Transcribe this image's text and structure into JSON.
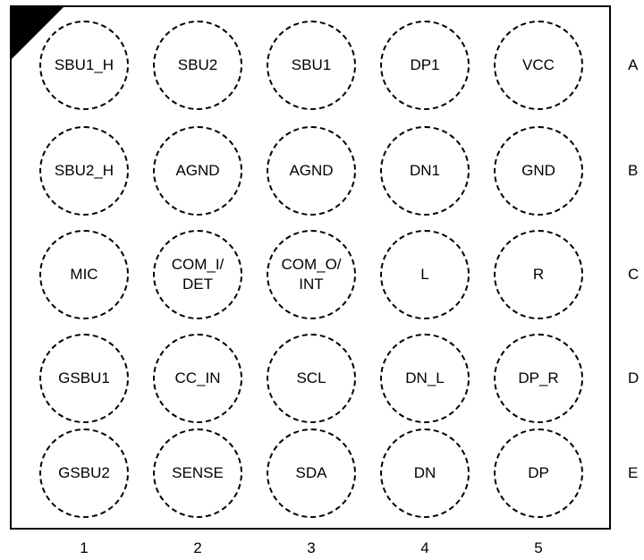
{
  "rows": [
    "A",
    "B",
    "C",
    "D",
    "E"
  ],
  "columns": [
    "1",
    "2",
    "3",
    "4",
    "5"
  ],
  "balls": [
    [
      "SBU1_H",
      "SBU2",
      "SBU1",
      "DP1",
      "VCC"
    ],
    [
      "SBU2_H",
      "AGND",
      "AGND",
      "DN1",
      "GND"
    ],
    [
      "MIC",
      "COM_I/\nDET",
      "COM_O/\nINT",
      "L",
      "R"
    ],
    [
      "GSBU1",
      "CC_IN",
      "SCL",
      "DN_L",
      "DP_R"
    ],
    [
      "GSBU2",
      "SENSE",
      "SDA",
      "DN",
      "DP"
    ]
  ],
  "pin1_marker": "corner-triangle"
}
